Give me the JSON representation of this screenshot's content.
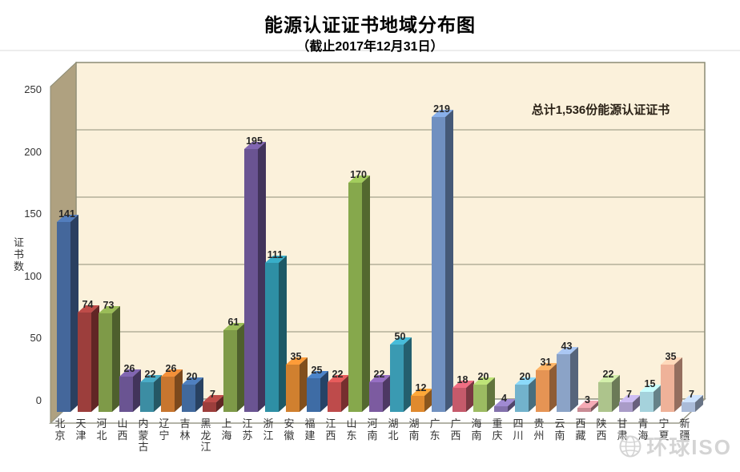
{
  "header": {
    "title": "能源认证证书地域分布图",
    "subtitle": "（截止2017年12月31日）"
  },
  "chart_data": {
    "type": "bar",
    "style": "3d-column",
    "title": "能源认证证书地域分布图",
    "subtitle": "（截止2017年12月31日）",
    "xlabel": "",
    "ylabel": "证书数",
    "ylim": [
      0,
      250
    ],
    "yticks": [
      0,
      50,
      100,
      150,
      200,
      250
    ],
    "grid": true,
    "legend": "none",
    "annotation": "总计1,536份能源认证证书",
    "total": 1536,
    "categories": [
      "北京",
      "天津",
      "河北",
      "山西",
      "内蒙古",
      "辽宁",
      "吉林",
      "黑龙江",
      "上海",
      "江苏",
      "浙江",
      "安徽",
      "福建",
      "江西",
      "山东",
      "河南",
      "湖北",
      "湖南",
      "广东",
      "广西",
      "海南",
      "重庆",
      "四川",
      "贵州",
      "云南",
      "西藏",
      "陕西",
      "甘肃",
      "青海",
      "宁夏",
      "新疆"
    ],
    "values": [
      141,
      74,
      73,
      26,
      22,
      26,
      20,
      7,
      61,
      195,
      111,
      35,
      25,
      22,
      170,
      22,
      50,
      12,
      219,
      18,
      20,
      4,
      20,
      31,
      43,
      3,
      22,
      7,
      15,
      35,
      7
    ],
    "colors": [
      "#44679B",
      "#9C3E3C",
      "#7E9A48",
      "#6A5492",
      "#3C8DA3",
      "#C8762F",
      "#41699D",
      "#9C3E3C",
      "#7E9A48",
      "#6A5492",
      "#2E8FA5",
      "#D0802F",
      "#3E6CA5",
      "#BE4B4B",
      "#86A84C",
      "#7C5BA0",
      "#3A9AB2",
      "#E08A2E",
      "#7090C0",
      "#C55A6B",
      "#9CBB62",
      "#8371AC",
      "#72B2CC",
      "#E59454",
      "#8BA3C7",
      "#C98B94",
      "#ADC48C",
      "#A99BC8",
      "#A5D2DC",
      "#EFB299",
      "#AABBD8"
    ]
  },
  "frame_colors": {
    "back_wall": "#FBF1DB",
    "side_wall": "#AFA180",
    "floor": "#FFFFFF",
    "grid_line": "#8F8F7A",
    "wall_edge": "#8B8B74"
  },
  "watermark": {
    "text": "环球ISO",
    "icon": "globe-icon"
  }
}
